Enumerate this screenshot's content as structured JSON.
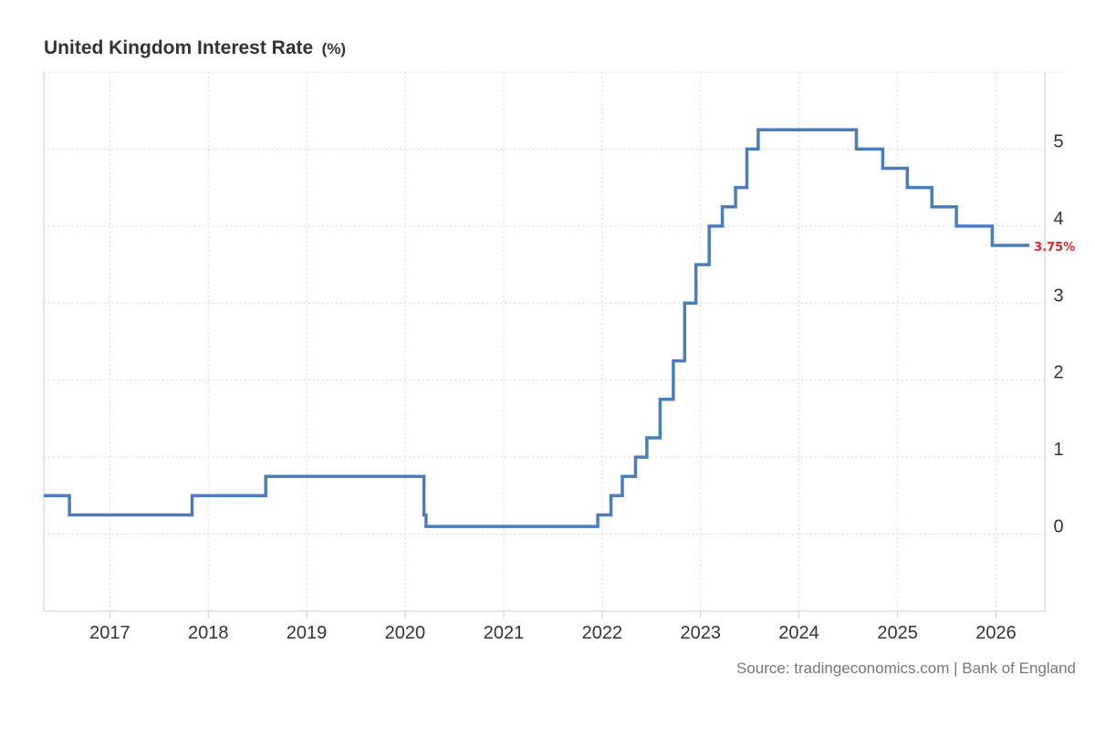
{
  "chart_data": {
    "type": "line",
    "step": true,
    "title": "United Kingdom Interest Rate",
    "title_unit": "(%)",
    "xlabel": "",
    "ylabel": "",
    "source": "Source: tradingeconomics.com | Bank of England",
    "x_ticks": [
      "2017",
      "2018",
      "2019",
      "2020",
      "2021",
      "2022",
      "2023",
      "2024",
      "2025",
      "2026"
    ],
    "y_ticks": [
      0,
      1,
      2,
      3,
      4,
      5
    ],
    "xlim": [
      "2016-05-01",
      "2026-07-01"
    ],
    "ylim": [
      -1,
      6
    ],
    "y_axis_position": "right",
    "grid": true,
    "line_color": "#4a7eba",
    "last_value_color": "#e8202a",
    "last_value_label": "3.75%",
    "series": [
      {
        "points": [
          [
            "2016-05-01",
            0.5
          ],
          [
            "2016-08-04",
            0.25
          ],
          [
            "2017-11-02",
            0.5
          ],
          [
            "2018-08-02",
            0.75
          ],
          [
            "2020-03-11",
            0.25
          ],
          [
            "2020-03-19",
            0.1
          ],
          [
            "2021-12-16",
            0.25
          ],
          [
            "2022-02-03",
            0.5
          ],
          [
            "2022-03-17",
            0.75
          ],
          [
            "2022-05-05",
            1.0
          ],
          [
            "2022-06-16",
            1.25
          ],
          [
            "2022-08-04",
            1.75
          ],
          [
            "2022-09-22",
            2.25
          ],
          [
            "2022-11-03",
            3.0
          ],
          [
            "2022-12-15",
            3.5
          ],
          [
            "2023-02-02",
            4.0
          ],
          [
            "2023-03-23",
            4.25
          ],
          [
            "2023-05-11",
            4.5
          ],
          [
            "2023-06-22",
            5.0
          ],
          [
            "2023-08-03",
            5.25
          ],
          [
            "2024-08-01",
            5.0
          ],
          [
            "2024-11-07",
            4.75
          ],
          [
            "2025-02-06",
            4.5
          ],
          [
            "2025-05-08",
            4.25
          ],
          [
            "2025-08-07",
            4.0
          ],
          [
            "2025-12-18",
            3.75
          ],
          [
            "2026-05-05",
            3.75
          ]
        ]
      }
    ]
  }
}
